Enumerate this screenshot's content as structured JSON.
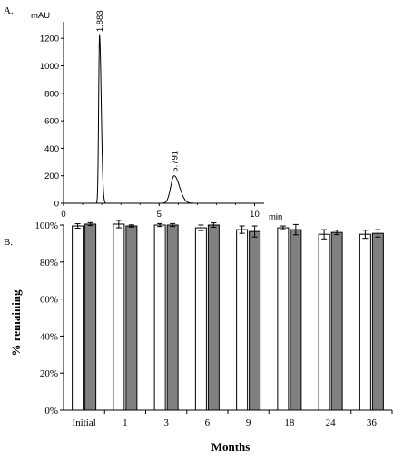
{
  "panels": {
    "a_label": "A.",
    "b_label": "B."
  },
  "chart_data": [
    {
      "type": "line",
      "panel": "A.",
      "ylabel": "mAU",
      "xlabel": "min",
      "xlim": [
        0,
        10.5
      ],
      "ylim": [
        0,
        1320
      ],
      "x_ticks": [
        0,
        5,
        10
      ],
      "y_ticks": [
        0,
        200,
        400,
        600,
        800,
        1000,
        1200
      ],
      "peaks": [
        {
          "label": "1.883",
          "rt": 1.883,
          "height": 1220,
          "sigma_left": 0.045,
          "sigma_right": 0.09
        },
        {
          "label": "5.791",
          "rt": 5.791,
          "height": 200,
          "sigma_left": 0.18,
          "sigma_right": 0.28
        }
      ]
    },
    {
      "type": "bar",
      "panel": "B.",
      "xlabel": "Months",
      "ylabel": "% remaining",
      "ylim": [
        0,
        100
      ],
      "y_ticks": [
        "0%",
        "20%",
        "40%",
        "60%",
        "80%",
        "100%"
      ],
      "categories": [
        "Initial",
        "1",
        "3",
        "6",
        "9",
        "18",
        "24",
        "36"
      ],
      "series": [
        {
          "color": "#ffffff",
          "values": [
            99.5,
            100.5,
            100,
            98.5,
            97.5,
            98.5,
            95,
            95
          ],
          "errors": [
            1.2,
            2,
            0.8,
            1.5,
            2,
            1,
            2.5,
            2.2
          ]
        },
        {
          "color": "#808080",
          "values": [
            100.5,
            99.5,
            100,
            100,
            96.5,
            97.5,
            96,
            95.5
          ],
          "errors": [
            0.8,
            0.6,
            0.8,
            1.2,
            3,
            2.8,
            1.2,
            2
          ]
        }
      ]
    }
  ]
}
